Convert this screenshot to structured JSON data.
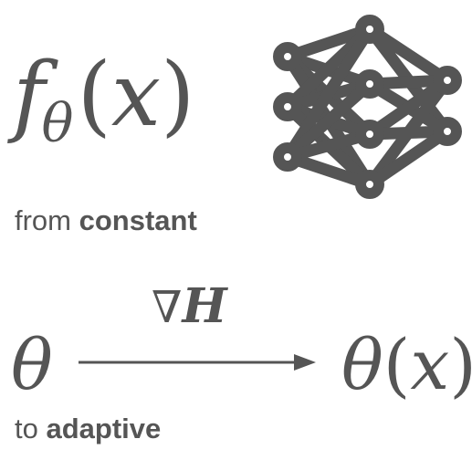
{
  "formula": {
    "func": "f",
    "subscript": "θ",
    "open_paren": "(",
    "arg": "x",
    "close_paren": ")"
  },
  "network_icon": "neural-network-icon",
  "caption_constant": {
    "prefix": "from ",
    "bold": "constant"
  },
  "transition": {
    "nabla": "∇",
    "variable": "H",
    "from_symbol": "θ",
    "to_func": "θ",
    "to_open": "(",
    "to_arg": "x",
    "to_close": ")"
  },
  "caption_adaptive": {
    "prefix": "to ",
    "bold": "adaptive"
  },
  "colors": {
    "ink": "#555555",
    "background": "#ffffff"
  }
}
